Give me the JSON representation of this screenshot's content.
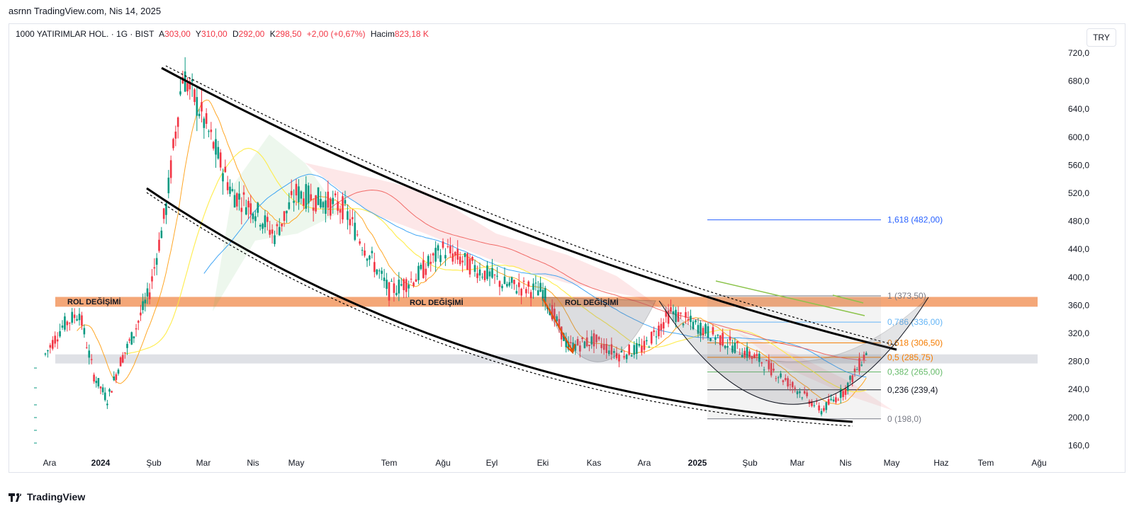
{
  "header": {
    "snapshot_text": "asrnn TradingView.com, Nis 14, 2025"
  },
  "legend": {
    "symbol": "1000 YATIRIMLAR HOL. · 1G · BIST",
    "open_label": "A",
    "open": "303,00",
    "high_label": "Y",
    "high": "310,00",
    "low_label": "D",
    "low": "292,00",
    "close_label": "K",
    "close": "298,50",
    "change": "+2,00 (+0,67%)",
    "volume_label": "Hacim",
    "volume": "823,18 K"
  },
  "currency_button": "TRY",
  "footer": {
    "brand": "TradingView"
  },
  "colors": {
    "candle_up": "#089981",
    "candle_down": "#f23645",
    "channel": "#000000",
    "resistance_band": "#f08a4b",
    "support_band": "#d1d4dc",
    "ma_orange": "#ff9800",
    "ma_yellow": "#ffeb3b",
    "ma_blue": "#2196f3",
    "ma_red": "#ef5350",
    "ma_green": "#4caf50",
    "fib_1618": "#2962ff"
  },
  "chart_data": {
    "type": "candlestick",
    "y_axis": {
      "labels": [
        "720,0",
        "680,0",
        "640,0",
        "600,0",
        "560,0",
        "520,0",
        "480,0",
        "440,0",
        "400,0",
        "360,0",
        "320,0",
        "280,0",
        "240,0",
        "200,0",
        "160,0"
      ],
      "range": [
        140,
        730
      ]
    },
    "x_axis": {
      "labels": [
        {
          "text": "Ara",
          "bold": false
        },
        {
          "text": "2024",
          "bold": true
        },
        {
          "text": "Şub",
          "bold": false
        },
        {
          "text": "Mar",
          "bold": false
        },
        {
          "text": "Nis",
          "bold": false
        },
        {
          "text": "May",
          "bold": false
        },
        {
          "text": "Tem",
          "bold": false
        },
        {
          "text": "Ağu",
          "bold": false
        },
        {
          "text": "Eyl",
          "bold": false
        },
        {
          "text": "Eki",
          "bold": false
        },
        {
          "text": "Kas",
          "bold": false
        },
        {
          "text": "Ara",
          "bold": false
        },
        {
          "text": "2025",
          "bold": true
        },
        {
          "text": "Şub",
          "bold": false
        },
        {
          "text": "Mar",
          "bold": false
        },
        {
          "text": "Nis",
          "bold": false
        },
        {
          "text": "May",
          "bold": false
        },
        {
          "text": "Haz",
          "bold": false
        },
        {
          "text": "Tem",
          "bold": false
        },
        {
          "text": "Ağu",
          "bold": false
        }
      ]
    },
    "price_path": [
      [
        "Ara",
        290
      ],
      [
        "Ara",
        330
      ],
      [
        "Ara",
        350
      ],
      [
        "2024",
        260
      ],
      [
        "2024",
        225
      ],
      [
        "2024",
        280
      ],
      [
        "2024",
        320
      ],
      [
        "Şub",
        380
      ],
      [
        "Şub",
        500
      ],
      [
        "Şub",
        690
      ],
      [
        "Mar",
        640
      ],
      [
        "Mar",
        580
      ],
      [
        "Mar",
        520
      ],
      [
        "Nis",
        500
      ],
      [
        "Nis",
        460
      ],
      [
        "May",
        520
      ],
      [
        "May",
        500
      ],
      [
        "Tem",
        380
      ],
      [
        "Tem",
        400
      ],
      [
        "Ağu",
        440
      ],
      [
        "Ağu",
        420
      ],
      [
        "Eyl",
        390
      ],
      [
        "Eki",
        380
      ],
      [
        "Eki",
        300
      ],
      [
        "Kas",
        310
      ],
      [
        "Kas",
        290
      ],
      [
        "Ara",
        300
      ],
      [
        "Ara",
        350
      ],
      [
        "2025",
        320
      ],
      [
        "Şub",
        280
      ],
      [
        "Mar",
        240
      ],
      [
        "Mar",
        210
      ],
      [
        "Nis",
        240
      ],
      [
        "Nis",
        298.5
      ]
    ],
    "annotations": {
      "rol_labels": [
        "ROL DEĞİŞİMİ",
        "ROL DEĞİŞİMİ",
        "ROL DEĞİŞİMİ"
      ],
      "resistance_band": [
        358,
        372
      ],
      "support_band": [
        277,
        290
      ]
    },
    "fibonacci": [
      {
        "label": "1,618 (482,00)",
        "level": 482.0,
        "color": "#2962ff"
      },
      {
        "label": "1 (373,50)",
        "level": 373.5,
        "color": "#787b86"
      },
      {
        "label": "0,786 (336,00)",
        "level": 336.0,
        "color": "#64b5f6"
      },
      {
        "label": "0,618 (306,50)",
        "level": 306.5,
        "color": "#f57c00"
      },
      {
        "label": "0,5 (285,75)",
        "level": 285.75,
        "color": "#f57c00"
      },
      {
        "label": "0,382 (265,00)",
        "level": 265.0,
        "color": "#66bb6a"
      },
      {
        "label": "0,236 (239,4)",
        "level": 239.4,
        "color": "#131722"
      },
      {
        "label": "0 (198,0)",
        "level": 198.0,
        "color": "#787b86"
      }
    ]
  }
}
